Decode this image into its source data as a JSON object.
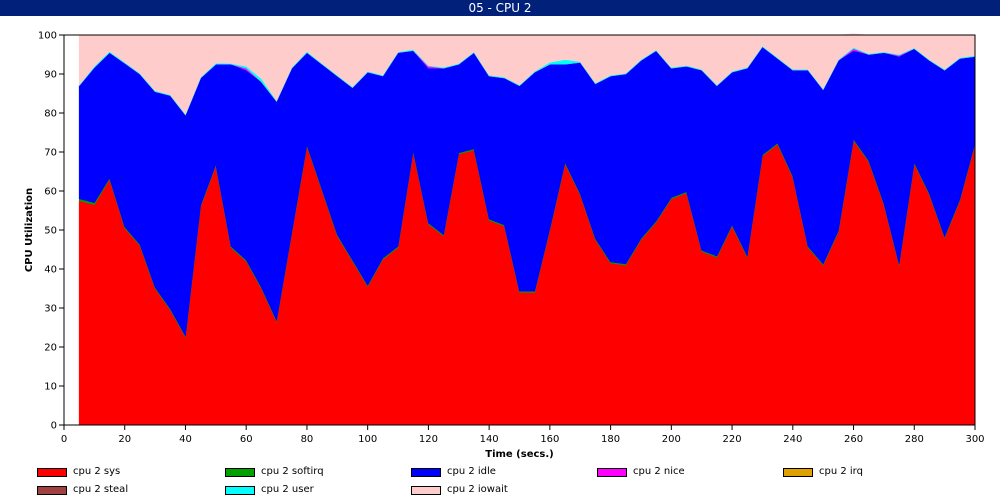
{
  "window": {
    "title": "05 - CPU 2"
  },
  "chart_data": {
    "type": "area",
    "stacked": true,
    "xlabel": "Time (secs.)",
    "ylabel": "CPU Utilization",
    "xlim": [
      0,
      300
    ],
    "ylim": [
      0,
      100
    ],
    "x_ticks": [
      0,
      20,
      40,
      60,
      80,
      100,
      120,
      140,
      160,
      180,
      200,
      220,
      240,
      260,
      280,
      300
    ],
    "y_ticks": [
      0,
      10,
      20,
      30,
      40,
      50,
      60,
      70,
      80,
      90,
      100
    ],
    "grid": false,
    "legend_position": "bottom",
    "x": [
      5,
      10,
      15,
      20,
      25,
      30,
      35,
      40,
      45,
      50,
      55,
      60,
      65,
      70,
      75,
      80,
      85,
      90,
      95,
      100,
      105,
      110,
      115,
      120,
      125,
      130,
      135,
      140,
      145,
      150,
      155,
      160,
      165,
      170,
      175,
      180,
      185,
      190,
      195,
      200,
      205,
      210,
      215,
      220,
      225,
      230,
      235,
      240,
      245,
      250,
      255,
      260,
      265,
      270,
      275,
      280,
      285,
      290,
      295,
      300
    ],
    "series": [
      {
        "name": "cpu 2 sys",
        "color": "#ff0000",
        "values": [
          57.5,
          56.5,
          63,
          50.5,
          46,
          35,
          29.5,
          22.5,
          56,
          66.5,
          45.5,
          42,
          35,
          26.5,
          49,
          71.5,
          60,
          48.5,
          42,
          35.5,
          42.5,
          45.5,
          70,
          51.5,
          48.5,
          69.5,
          70.5,
          52.5,
          51,
          34,
          34,
          50,
          67,
          59,
          47.5,
          41.5,
          41,
          47.5,
          52,
          58,
          59.5,
          44.5,
          43,
          51,
          43,
          69,
          72,
          63.5,
          45.5,
          41,
          49.5,
          73,
          67.5,
          56.5,
          41,
          67,
          59,
          48,
          57.5,
          72
        ]
      },
      {
        "name": "cpu 2 softirq",
        "color": "#00a000",
        "values": [
          0.5,
          0.5,
          0.3,
          0.3,
          0.3,
          0.3,
          0.3,
          0.3,
          0.3,
          0.3,
          0.3,
          0.3,
          0.3,
          0.3,
          0.3,
          0.3,
          0.3,
          0.3,
          0.3,
          0.3,
          0.3,
          0.3,
          0.3,
          0.3,
          0.3,
          0.3,
          0.3,
          0.3,
          0.3,
          0.3,
          0.3,
          0.3,
          0.3,
          0.3,
          0.3,
          0.3,
          0.3,
          0.3,
          0.3,
          0.3,
          0.3,
          0.3,
          0.3,
          0.3,
          0.3,
          0.3,
          0.3,
          0.3,
          0.3,
          0.3,
          0.3,
          0.3,
          0.3,
          0.3,
          0.3,
          0.3,
          0.3,
          0.3,
          0.3,
          0.3
        ]
      },
      {
        "name": "cpu 2 idle",
        "color": "#0000ff",
        "values": [
          29,
          34.7,
          32.2,
          42,
          43.7,
          50.2,
          54.7,
          56.7,
          32.7,
          25.7,
          46.7,
          48.7,
          52.7,
          56.2,
          42.2,
          23.7,
          32.2,
          40.7,
          44.2,
          54.7,
          46.7,
          49.7,
          25.7,
          39.7,
          42.7,
          22.7,
          24.7,
          36.7,
          37.7,
          52.7,
          56.2,
          42.2,
          25.2,
          33.7,
          39.7,
          47.7,
          48.7,
          45.7,
          43.7,
          33.2,
          32.2,
          46.2,
          43.7,
          39.2,
          48.2,
          27.7,
          21.7,
          27.2,
          45.2,
          44.7,
          43.7,
          22.7,
          27.2,
          38.7,
          53.2,
          29.2,
          34.2,
          42.7,
          36.2,
          22.2
        ]
      },
      {
        "name": "cpu 2 nice",
        "color": "#ff00ff",
        "values": [
          0,
          0,
          0,
          0,
          0,
          0,
          0,
          0,
          0,
          0,
          0,
          0.5,
          0,
          0,
          0,
          0,
          0,
          0,
          0,
          0,
          0,
          0,
          0,
          0.5,
          0,
          0,
          0,
          0,
          0,
          0,
          0,
          0,
          0,
          0,
          0,
          0,
          0,
          0,
          0,
          0,
          0,
          0,
          0,
          0,
          0,
          0,
          0,
          0,
          0,
          0,
          0,
          0.5,
          0,
          0,
          0.3,
          0,
          0,
          0,
          0,
          0
        ]
      },
      {
        "name": "cpu 2 irq",
        "color": "#e0a000",
        "values": [
          0,
          0,
          0,
          0,
          0,
          0,
          0,
          0,
          0,
          0,
          0,
          0,
          0,
          0,
          0,
          0,
          0,
          0,
          0,
          0,
          0,
          0,
          0,
          0,
          0,
          0,
          0,
          0,
          0,
          0,
          0,
          0,
          0,
          0,
          0,
          0,
          0,
          0,
          0,
          0,
          0,
          0,
          0,
          0,
          0,
          0,
          0,
          0,
          0,
          0,
          0,
          0,
          0,
          0,
          0,
          0,
          0,
          0,
          0,
          0
        ]
      },
      {
        "name": "cpu 2 steal",
        "color": "#a04040",
        "values": [
          0,
          0,
          0,
          0,
          0,
          0,
          0,
          0,
          0,
          0,
          0,
          0,
          0,
          0,
          0,
          0,
          0,
          0,
          0,
          0,
          0,
          0,
          0,
          0,
          0,
          0,
          0,
          0,
          0,
          0,
          0,
          0,
          0,
          0,
          0,
          0,
          0,
          0,
          0,
          0,
          0,
          0,
          0,
          0,
          0,
          0,
          0,
          0,
          0,
          0,
          0,
          0,
          0,
          0,
          0,
          0,
          0,
          0,
          0,
          0
        ]
      },
      {
        "name": "cpu 2 user",
        "color": "#00ffff",
        "values": [
          0.2,
          0.3,
          0.3,
          0.2,
          0.2,
          0.2,
          0.2,
          0.2,
          0.2,
          0.3,
          0.2,
          0.5,
          0.8,
          0.2,
          0.2,
          0.3,
          0.2,
          0.2,
          0.2,
          0.2,
          0.2,
          0.2,
          0.3,
          0.2,
          0.2,
          0.2,
          0.2,
          0.2,
          0.2,
          0.2,
          0.2,
          0.5,
          1.2,
          0.2,
          0.2,
          0.2,
          0.2,
          0.2,
          0.2,
          0.2,
          0.2,
          0.2,
          0.2,
          0.2,
          0.2,
          0.2,
          0.2,
          0.2,
          0.2,
          0.2,
          0.2,
          0.3,
          0.2,
          0.2,
          0.2,
          0.2,
          0.2,
          0.2,
          0.2,
          0.2
        ]
      },
      {
        "name": "cpu 2 iowait",
        "color": "#ffcccc",
        "values": [
          12.8,
          8,
          4.2,
          7,
          9.8,
          14.3,
          15.3,
          20.3,
          10.8,
          7.2,
          7.3,
          8,
          11.2,
          16.8,
          8.3,
          4.2,
          7.3,
          10.3,
          13.3,
          9.3,
          10.3,
          4.3,
          3.7,
          7.8,
          8.3,
          7.3,
          4.3,
          10.3,
          10.8,
          12.8,
          9.3,
          7,
          6.3,
          6.8,
          12.3,
          10.3,
          9.8,
          6.3,
          3.8,
          8.3,
          7.8,
          8.8,
          12.8,
          9.3,
          8.3,
          2.8,
          5.8,
          8.8,
          8.8,
          13.8,
          6.3,
          3.5,
          4.8,
          4.3,
          5,
          3.3,
          6.3,
          8.8,
          5.8,
          5.3
        ]
      }
    ]
  }
}
